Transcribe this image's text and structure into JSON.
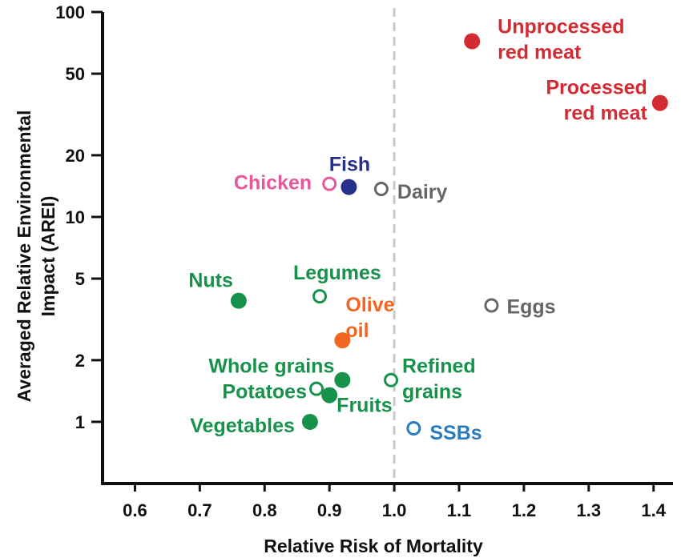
{
  "chart_data": {
    "type": "scatter",
    "xlabel": "Relative Risk of Mortality",
    "ylabel": [
      "Averaged Relative Environmental",
      "Impact (AREI)"
    ],
    "x_scale": "linear",
    "y_scale": "log",
    "xlim": [
      0.55,
      1.43
    ],
    "ylim": [
      0.5,
      100
    ],
    "x_ticks": [
      0.6,
      0.7,
      0.8,
      0.9,
      1.0,
      1.1,
      1.2,
      1.3,
      1.4
    ],
    "x_tick_labels": [
      "0.6",
      "0.7",
      "0.8",
      "0.9",
      "1.0",
      "1.1",
      "1.2",
      "1.3",
      "1.4"
    ],
    "y_ticks": [
      1,
      2,
      5,
      10,
      20,
      50,
      100
    ],
    "y_tick_labels": [
      "1",
      "2",
      "5",
      "10",
      "20",
      "50",
      "100"
    ],
    "reference_line": {
      "x": 1.0,
      "style": "dashed",
      "color": "#c8c8c8"
    },
    "grid": false,
    "points": [
      {
        "label": [
          "Unprocessed",
          "red meat"
        ],
        "x": 1.12,
        "y": 72,
        "filled": true,
        "color": "#d42a32"
      },
      {
        "label": [
          "Processed",
          "red meat"
        ],
        "x": 1.41,
        "y": 36,
        "filled": true,
        "color": "#d42a32"
      },
      {
        "label": [
          "Fish"
        ],
        "x": 0.93,
        "y": 14,
        "filled": true,
        "color": "#27318c"
      },
      {
        "label": [
          "Chicken"
        ],
        "x": 0.9,
        "y": 14.5,
        "filled": false,
        "color": "#e4599a"
      },
      {
        "label": [
          "Dairy"
        ],
        "x": 0.98,
        "y": 13.7,
        "filled": false,
        "color": "#666666"
      },
      {
        "label": [
          "Nuts"
        ],
        "x": 0.76,
        "y": 3.9,
        "filled": true,
        "color": "#17924a"
      },
      {
        "label": [
          "Legumes"
        ],
        "x": 0.885,
        "y": 4.1,
        "filled": false,
        "color": "#17924a"
      },
      {
        "label": [
          "Olive",
          "oil"
        ],
        "x": 0.92,
        "y": 2.5,
        "filled": true,
        "color": "#f26522"
      },
      {
        "label": [
          "Eggs"
        ],
        "x": 1.15,
        "y": 3.7,
        "filled": false,
        "color": "#666666"
      },
      {
        "label": [
          "Whole grains"
        ],
        "x": 0.92,
        "y": 1.6,
        "filled": true,
        "color": "#17924a"
      },
      {
        "label": [
          "Refined",
          "grains"
        ],
        "x": 0.995,
        "y": 1.6,
        "filled": false,
        "color": "#17924a"
      },
      {
        "label": [
          "Potatoes"
        ],
        "x": 0.88,
        "y": 1.45,
        "filled": false,
        "color": "#17924a"
      },
      {
        "label": [
          "Fruits"
        ],
        "x": 0.9,
        "y": 1.35,
        "filled": true,
        "color": "#17924a"
      },
      {
        "label": [
          "Vegetables"
        ],
        "x": 0.87,
        "y": 1.0,
        "filled": true,
        "color": "#17924a"
      },
      {
        "label": [
          "SSBs"
        ],
        "x": 1.03,
        "y": 0.93,
        "filled": false,
        "color": "#2a7bbf"
      }
    ]
  }
}
